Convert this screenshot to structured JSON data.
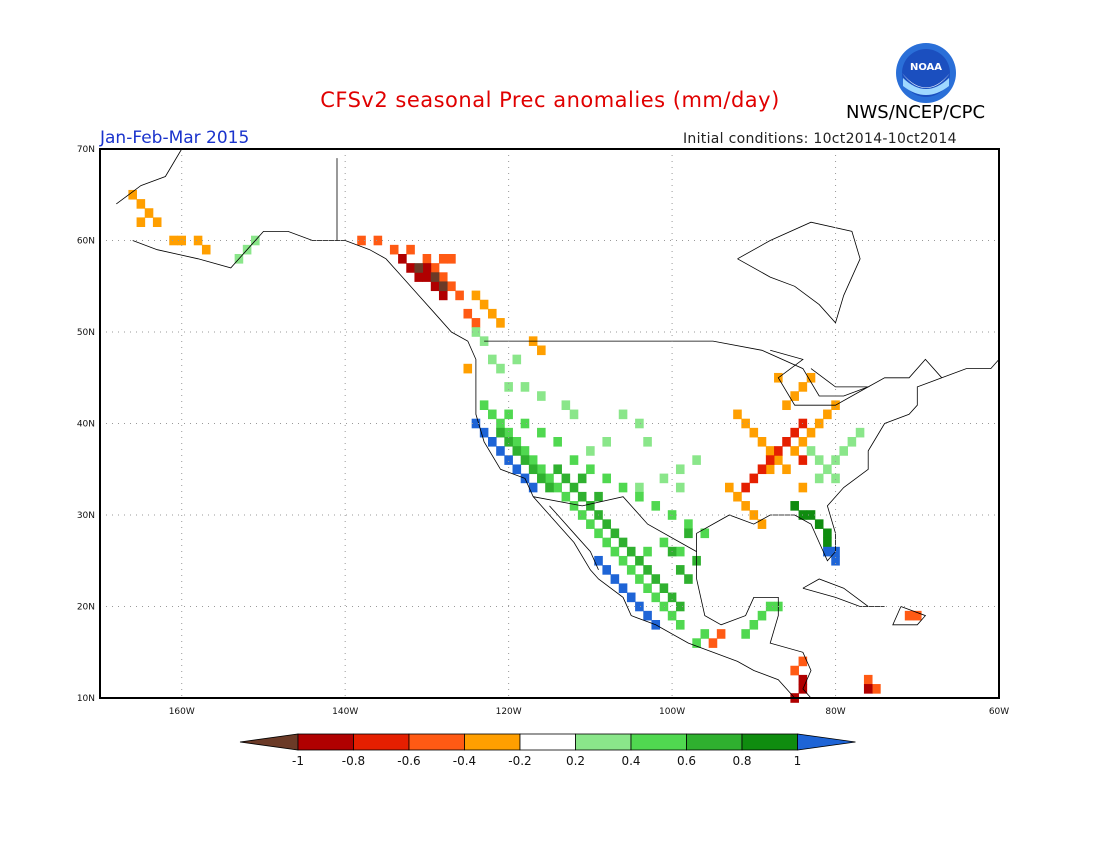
{
  "header": {
    "title": "CFSv2 seasonal Prec anomalies (mm/day)",
    "period": "Jan-Feb-Mar 2015",
    "initial_conditions": "Initial conditions: 10ct2014-10ct2014",
    "agency": "NWS/NCEP/CPC",
    "logo_text": "NOAA"
  },
  "axes": {
    "lon_labels": [
      "160W",
      "140W",
      "120W",
      "100W",
      "80W",
      "60W"
    ],
    "lat_labels": [
      "70N",
      "60N",
      "50N",
      "40N",
      "30N",
      "20N",
      "10N"
    ],
    "lon_values": [
      -160,
      -140,
      -120,
      -100,
      -80,
      -60
    ],
    "lat_values": [
      70,
      60,
      50,
      40,
      30,
      20,
      10
    ],
    "lon_range": [
      -170,
      -60
    ],
    "lat_range": [
      10,
      70
    ],
    "grid": "dotted"
  },
  "colorbar": {
    "labels": [
      "-1",
      "-0.8",
      "-0.6",
      "-0.4",
      "-0.2",
      "0.2",
      "0.4",
      "0.6",
      "0.8",
      "1"
    ],
    "colors": [
      "#6b3a27",
      "#b00000",
      "#e51f00",
      "#ff5a14",
      "#ff9f00",
      "#ffffff",
      "#8ae68a",
      "#50d850",
      "#2fb02f",
      "#0f8c0f",
      "#1e64d6"
    ]
  },
  "anomaly_regions": [
    {
      "name": "alaska-west-dry",
      "value": -0.3,
      "cells": [
        [
          -166,
          65
        ],
        [
          -165,
          64
        ],
        [
          -164,
          63
        ],
        [
          -163,
          62
        ],
        [
          -165,
          62
        ],
        [
          -161,
          60
        ],
        [
          -160,
          60
        ],
        [
          -157,
          59
        ],
        [
          -158,
          60
        ]
      ]
    },
    {
      "name": "alaska-wet",
      "value": 0.3,
      "cells": [
        [
          -152,
          59
        ],
        [
          -153,
          58
        ],
        [
          -151,
          60
        ]
      ]
    },
    {
      "name": "bc-coast-dry",
      "value": -0.5,
      "cells": [
        [
          -138,
          60
        ],
        [
          -136,
          60
        ],
        [
          -134,
          59
        ],
        [
          -132,
          59
        ],
        [
          -130,
          58
        ],
        [
          -129,
          57
        ],
        [
          -128,
          56
        ],
        [
          -127,
          55
        ],
        [
          -126,
          54
        ],
        [
          -125,
          52
        ],
        [
          -124,
          51
        ],
        [
          -127,
          58
        ],
        [
          -128,
          58
        ]
      ]
    },
    {
      "name": "bc-coast-very-dry",
      "value": -0.9,
      "cells": [
        [
          -133,
          58
        ],
        [
          -132,
          57
        ],
        [
          -131,
          56
        ],
        [
          -130,
          56
        ],
        [
          -129,
          55
        ],
        [
          -128,
          54
        ],
        [
          -130,
          57
        ]
      ]
    },
    {
      "name": "bc-coast-darkest",
      "value": -1.1,
      "cells": [
        [
          -131,
          57
        ],
        [
          -129,
          56
        ],
        [
          -128,
          55
        ]
      ]
    },
    {
      "name": "bc-interior-dry",
      "value": -0.3,
      "cells": [
        [
          -124,
          54
        ],
        [
          -123,
          53
        ],
        [
          -122,
          52
        ],
        [
          -121,
          51
        ],
        [
          -117,
          49
        ],
        [
          -116,
          48
        ],
        [
          -125,
          46
        ]
      ]
    },
    {
      "name": "pacific-nw-wet",
      "value": 0.3,
      "cells": [
        [
          -124,
          50
        ],
        [
          -123,
          49
        ],
        [
          -122,
          47
        ],
        [
          -121,
          46
        ],
        [
          -119,
          47
        ],
        [
          -120,
          44
        ],
        [
          -118,
          44
        ],
        [
          -116,
          43
        ],
        [
          -112,
          41
        ],
        [
          -113,
          42
        ],
        [
          -106,
          41
        ],
        [
          -104,
          40
        ],
        [
          -103,
          38
        ],
        [
          -108,
          38
        ],
        [
          -110,
          37
        ],
        [
          -97,
          36
        ],
        [
          -99,
          35
        ],
        [
          -101,
          34
        ],
        [
          -99,
          33
        ],
        [
          -104,
          33
        ]
      ]
    },
    {
      "name": "california-wet",
      "value": 0.5,
      "cells": [
        [
          -123,
          42
        ],
        [
          -122,
          41
        ],
        [
          -121,
          40
        ],
        [
          -120,
          39
        ],
        [
          -119,
          38
        ],
        [
          -118,
          37
        ],
        [
          -117,
          36
        ],
        [
          -116,
          35
        ],
        [
          -115,
          34
        ],
        [
          -114,
          33
        ],
        [
          -113,
          32
        ],
        [
          -112,
          31
        ],
        [
          -111,
          30
        ],
        [
          -110,
          29
        ],
        [
          -109,
          28
        ],
        [
          -108,
          27
        ],
        [
          -107,
          26
        ],
        [
          -106,
          25
        ],
        [
          -105,
          24
        ],
        [
          -104,
          23
        ],
        [
          -103,
          22
        ],
        [
          -102,
          21
        ],
        [
          -101,
          20
        ],
        [
          -100,
          19
        ],
        [
          -99,
          18
        ],
        [
          -120,
          41
        ],
        [
          -118,
          40
        ],
        [
          -116,
          39
        ],
        [
          -114,
          38
        ],
        [
          -112,
          36
        ],
        [
          -110,
          35
        ],
        [
          -108,
          34
        ],
        [
          -106,
          33
        ],
        [
          -104,
          32
        ],
        [
          -102,
          31
        ],
        [
          -100,
          30
        ],
        [
          -98,
          29
        ],
        [
          -96,
          28
        ],
        [
          -101,
          27
        ],
        [
          -99,
          26
        ],
        [
          -103,
          26
        ]
      ]
    },
    {
      "name": "southwest-wet",
      "value": 0.7,
      "cells": [
        [
          -121,
          39
        ],
        [
          -120,
          38
        ],
        [
          -119,
          37
        ],
        [
          -118,
          36
        ],
        [
          -117,
          35
        ],
        [
          -116,
          34
        ],
        [
          -115,
          33
        ],
        [
          -113,
          34
        ],
        [
          -112,
          33
        ],
        [
          -111,
          32
        ],
        [
          -110,
          31
        ],
        [
          -109,
          30
        ],
        [
          -108,
          29
        ],
        [
          -107,
          28
        ],
        [
          -106,
          27
        ],
        [
          -105,
          26
        ],
        [
          -104,
          25
        ],
        [
          -103,
          24
        ],
        [
          -102,
          23
        ],
        [
          -101,
          22
        ],
        [
          -100,
          21
        ],
        [
          -99,
          20
        ],
        [
          -114,
          35
        ],
        [
          -111,
          34
        ],
        [
          -109,
          32
        ],
        [
          -99,
          24
        ],
        [
          -98,
          23
        ],
        [
          -97,
          25
        ],
        [
          -100,
          26
        ],
        [
          -98,
          28
        ]
      ]
    },
    {
      "name": "coastal-very-wet",
      "value": 1.0,
      "cells": [
        [
          -124,
          40
        ],
        [
          -123,
          39
        ],
        [
          -122,
          38
        ],
        [
          -121,
          37
        ],
        [
          -120,
          36
        ],
        [
          -119,
          35
        ],
        [
          -118,
          34
        ],
        [
          -117,
          33
        ],
        [
          -109,
          25
        ],
        [
          -108,
          24
        ],
        [
          -107,
          23
        ],
        [
          -106,
          22
        ],
        [
          -105,
          21
        ],
        [
          -104,
          20
        ],
        [
          -103,
          19
        ],
        [
          -102,
          18
        ]
      ]
    },
    {
      "name": "ohio-valley-dry",
      "value": -0.3,
      "cells": [
        [
          -92,
          41
        ],
        [
          -91,
          40
        ],
        [
          -90,
          39
        ],
        [
          -89,
          38
        ],
        [
          -88,
          37
        ],
        [
          -87,
          36
        ],
        [
          -86,
          35
        ],
        [
          -85,
          37
        ],
        [
          -84,
          38
        ],
        [
          -83,
          39
        ],
        [
          -82,
          40
        ],
        [
          -81,
          41
        ],
        [
          -80,
          42
        ],
        [
          -86,
          42
        ],
        [
          -85,
          43
        ],
        [
          -84,
          44
        ],
        [
          -83,
          45
        ],
        [
          -87,
          45
        ],
        [
          -93,
          33
        ],
        [
          -92,
          32
        ],
        [
          -91,
          31
        ],
        [
          -90,
          30
        ],
        [
          -89,
          29
        ],
        [
          -84,
          33
        ],
        [
          -88,
          35
        ]
      ]
    },
    {
      "name": "ohio-valley-very-dry",
      "value": -0.6,
      "cells": [
        [
          -88,
          36
        ],
        [
          -87,
          37
        ],
        [
          -86,
          38
        ],
        [
          -85,
          39
        ],
        [
          -84,
          40
        ],
        [
          -89,
          35
        ],
        [
          -90,
          34
        ],
        [
          -91,
          33
        ],
        [
          -84,
          36
        ]
      ]
    },
    {
      "name": "southeast-wet",
      "value": 0.3,
      "cells": [
        [
          -83,
          37
        ],
        [
          -82,
          36
        ],
        [
          -81,
          35
        ],
        [
          -80,
          36
        ],
        [
          -79,
          37
        ],
        [
          -78,
          38
        ],
        [
          -77,
          39
        ],
        [
          -82,
          34
        ],
        [
          -80,
          34
        ]
      ]
    },
    {
      "name": "florida-wet",
      "value": 0.8,
      "cells": [
        [
          -85,
          31
        ],
        [
          -84,
          30
        ],
        [
          -83,
          30
        ],
        [
          -82,
          29
        ],
        [
          -81,
          28
        ],
        [
          -81,
          27
        ]
      ]
    },
    {
      "name": "florida-very-wet",
      "value": 1.0,
      "cells": [
        [
          -81,
          26
        ],
        [
          -80,
          26
        ],
        [
          -80,
          25
        ]
      ]
    },
    {
      "name": "central-america-wet",
      "value": 0.4,
      "cells": [
        [
          -89,
          19
        ],
        [
          -88,
          20
        ],
        [
          -87,
          20
        ],
        [
          -90,
          18
        ],
        [
          -91,
          17
        ],
        [
          -96,
          17
        ],
        [
          -97,
          16
        ]
      ]
    },
    {
      "name": "central-america-dry",
      "value": -0.4,
      "cells": [
        [
          -94,
          17
        ],
        [
          -95,
          16
        ],
        [
          -84,
          14
        ],
        [
          -85,
          13
        ],
        [
          -76,
          12
        ],
        [
          -75,
          11
        ],
        [
          -70,
          19
        ],
        [
          -71,
          19
        ]
      ]
    },
    {
      "name": "central-america-very-dry",
      "value": -0.8,
      "cells": [
        [
          -84,
          12
        ],
        [
          -84,
          11
        ],
        [
          -85,
          10
        ],
        [
          -76,
          11
        ]
      ]
    }
  ]
}
